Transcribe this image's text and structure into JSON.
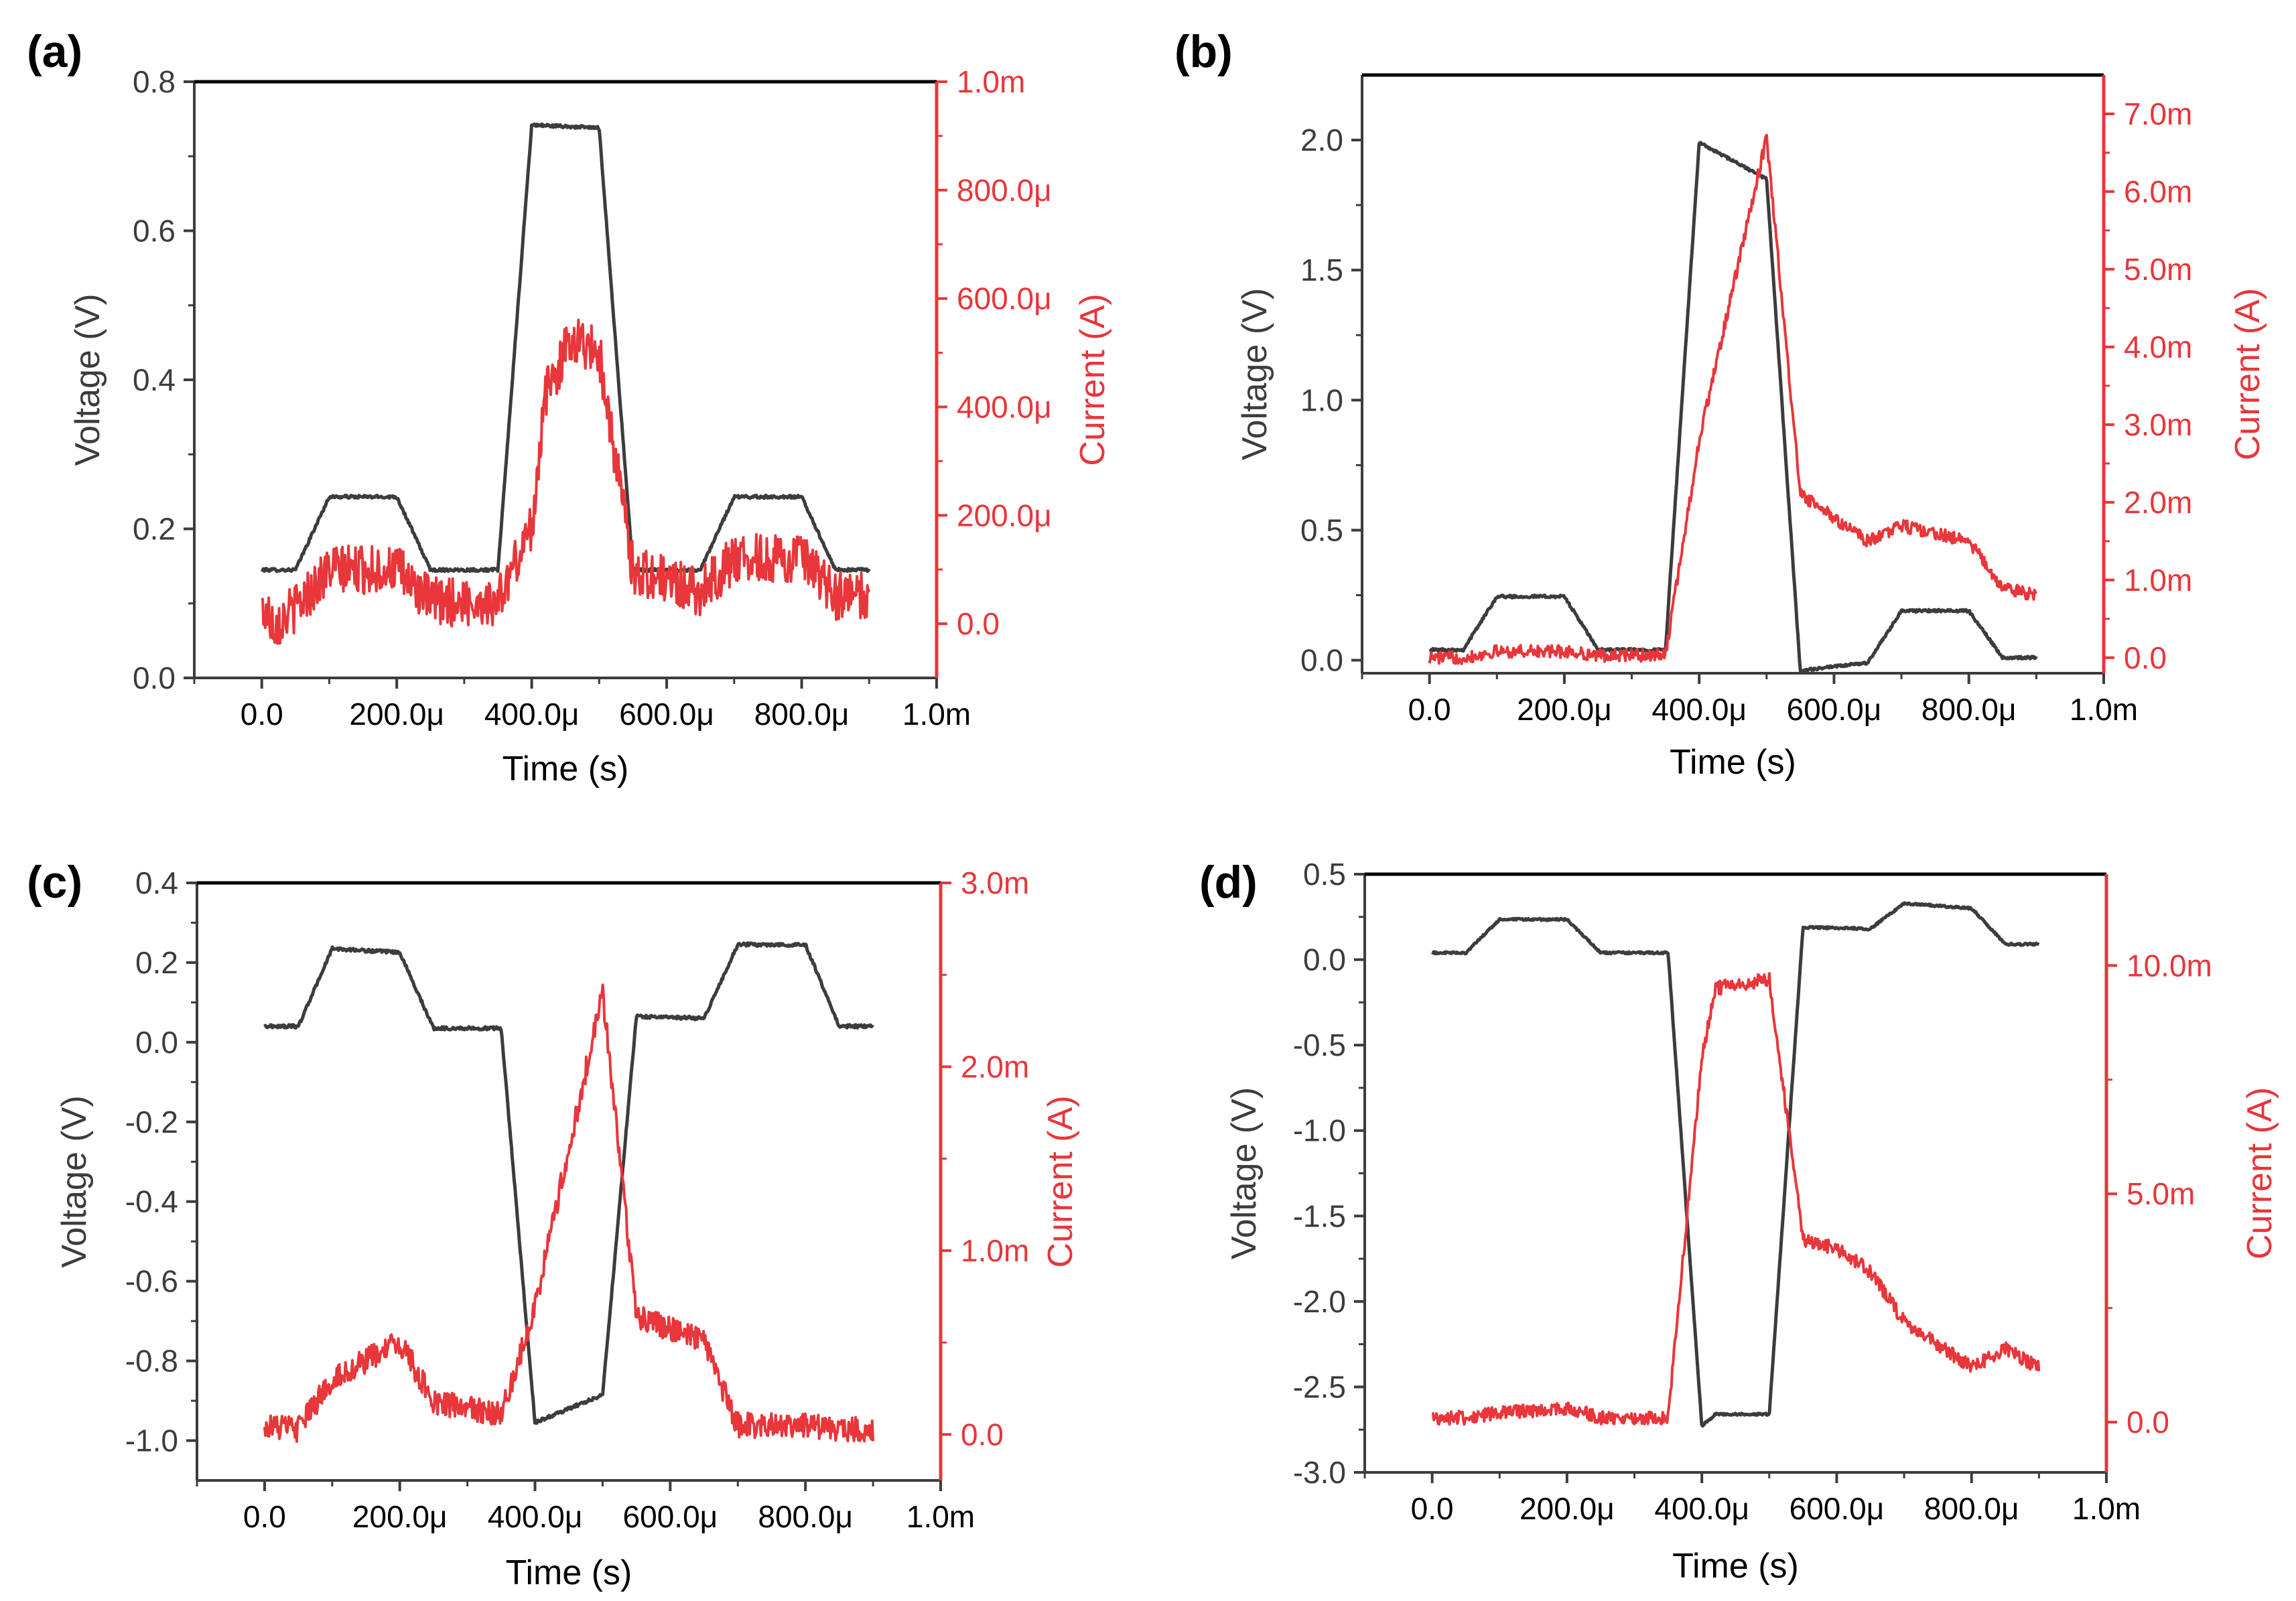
{
  "colors": {
    "voltage": "#3c3c3c",
    "current": "#e8363a",
    "frame": "#000000"
  },
  "chart_data": [
    {
      "type": "line",
      "panel_label": "(a)",
      "xlabel": "Time (s)",
      "ylabel_left": "Voltage (V)",
      "ylabel_right": "Current (A)",
      "xlim": [
        -0.0001,
        0.001
      ],
      "xticks": [
        0,
        0.0002,
        0.0004,
        0.0006,
        0.0008,
        0.001
      ],
      "xtick_labels": [
        "0.0",
        "200.0μ",
        "400.0μ",
        "600.0μ",
        "800.0μ",
        "1.0m"
      ],
      "ylim_left": [
        0,
        0.8
      ],
      "yticks_left": [
        0,
        0.2,
        0.4,
        0.6,
        0.8
      ],
      "ytick_labels_left": [
        "0.0",
        "0.2",
        "0.4",
        "0.6",
        "0.8"
      ],
      "ylim_right": [
        -0.0001,
        0.001
      ],
      "yticks_right": [
        0,
        0.0002,
        0.0004,
        0.0006,
        0.0008,
        0.001
      ],
      "ytick_labels_right": [
        "0.0",
        "200.0μ",
        "400.0μ",
        "600.0μ",
        "800.0μ",
        "1.0m"
      ],
      "series": [
        {
          "name": "Voltage",
          "axis": "left",
          "x": [
            0,
            5e-05,
            0.0001,
            0.0002,
            0.00025,
            0.00035,
            0.0004,
            0.0005,
            0.00055,
            0.00065,
            0.0007,
            0.0008,
            0.00085,
            0.0009
          ],
          "y": [
            0.145,
            0.145,
            0.243,
            0.243,
            0.145,
            0.145,
            0.742,
            0.738,
            0.145,
            0.145,
            0.243,
            0.243,
            0.145,
            0.145
          ],
          "noise": 0.002
        },
        {
          "name": "Current",
          "axis": "right",
          "x": [
            0,
            2e-05,
            5e-05,
            0.0001,
            0.0002,
            0.00025,
            0.00035,
            0.0004,
            0.00042,
            0.00046,
            0.0005,
            0.00055,
            0.00065,
            0.0007,
            0.0008,
            0.00085,
            0.0009
          ],
          "y": [
            3e-05,
            0.0,
            3e-05,
            0.0001,
            0.0001,
            4e-05,
            4e-05,
            0.00018,
            0.00042,
            0.00053,
            0.0005,
            0.0001,
            6e-05,
            0.00012,
            0.00012,
            5e-05,
            5e-05
          ],
          "noise": 4.5e-05
        }
      ]
    },
    {
      "type": "line",
      "panel_label": "(b)",
      "xlabel": "Time (s)",
      "ylabel_left": "Voltage (V)",
      "ylabel_right": "Current (A)",
      "xlim": [
        -0.0001,
        0.001
      ],
      "xticks": [
        0,
        0.0002,
        0.0004,
        0.0006,
        0.0008,
        0.001
      ],
      "xtick_labels": [
        "0.0",
        "200.0μ",
        "400.0μ",
        "600.0μ",
        "800.0μ",
        "1.0m"
      ],
      "ylim_left": [
        -0.05,
        2.25
      ],
      "yticks_left": [
        0,
        0.5,
        1.0,
        1.5,
        2.0
      ],
      "ytick_labels_left": [
        "0.0",
        "0.5",
        "1.0",
        "1.5",
        "2.0"
      ],
      "ylim_right": [
        -0.0002,
        0.0075
      ],
      "yticks_right": [
        0,
        0.001,
        0.002,
        0.003,
        0.004,
        0.005,
        0.006,
        0.007
      ],
      "ytick_labels_right": [
        "0.0",
        "1.0m",
        "2.0m",
        "3.0m",
        "4.0m",
        "5.0m",
        "6.0m",
        "7.0m"
      ],
      "series": [
        {
          "name": "Voltage",
          "axis": "left",
          "x": [
            0,
            5e-05,
            0.0001,
            0.0002,
            0.00025,
            0.00035,
            0.0004,
            0.0005,
            0.00055,
            0.00065,
            0.0007,
            0.0008,
            0.00085,
            0.0009
          ],
          "y": [
            0.04,
            0.04,
            0.245,
            0.245,
            0.04,
            0.04,
            1.99,
            1.85,
            -0.04,
            -0.01,
            0.19,
            0.19,
            0.01,
            0.01
          ],
          "noise": 0.005
        },
        {
          "name": "Current",
          "axis": "right",
          "x": [
            0,
            5e-05,
            0.0001,
            0.0002,
            0.00025,
            0.00035,
            0.0004,
            0.0005,
            0.00055,
            0.0006,
            0.00065,
            0.0007,
            0.0008,
            0.00085,
            0.0009
          ],
          "y": [
            0.0,
            0.0,
            8e-05,
            8e-05,
            3e-05,
            3e-05,
            0.0028,
            0.0067,
            0.0021,
            0.0018,
            0.0015,
            0.0017,
            0.0015,
            0.0009,
            0.0008
          ],
          "noise": 8e-05
        }
      ]
    },
    {
      "type": "line",
      "panel_label": "(c)",
      "xlabel": "Time (s)",
      "ylabel_left": "Voltage (V)",
      "ylabel_right": "Current (A)",
      "xlim": [
        -0.0001,
        0.001
      ],
      "xticks": [
        0,
        0.0002,
        0.0004,
        0.0006,
        0.0008,
        0.001
      ],
      "xtick_labels": [
        "0.0",
        "200.0μ",
        "400.0μ",
        "600.0μ",
        "800.0μ",
        "1.0m"
      ],
      "ylim_left": [
        -1.1,
        0.4
      ],
      "yticks_left": [
        -1.0,
        -0.8,
        -0.6,
        -0.4,
        -0.2,
        0.0,
        0.2,
        0.4
      ],
      "ytick_labels_left": [
        "-1.0",
        "-0.8",
        "-0.6",
        "-0.4",
        "-0.2",
        "0.0",
        "0.2",
        "0.4"
      ],
      "ylim_right": [
        -0.00025,
        0.003
      ],
      "yticks_right": [
        0,
        0.001,
        0.002,
        0.003
      ],
      "ytick_labels_right": [
        "0.0",
        "1.0m",
        "2.0m",
        "3.0m"
      ],
      "series": [
        {
          "name": "Voltage",
          "axis": "left",
          "x": [
            0,
            5e-05,
            0.0001,
            0.0002,
            0.00025,
            0.00035,
            0.0004,
            0.0005,
            0.00055,
            0.00065,
            0.0007,
            0.0008,
            0.00085,
            0.0009
          ],
          "y": [
            0.04,
            0.04,
            0.235,
            0.225,
            0.035,
            0.035,
            -0.955,
            -0.885,
            0.065,
            0.06,
            0.245,
            0.245,
            0.04,
            0.04
          ],
          "noise": 0.004
        },
        {
          "name": "Current",
          "axis": "right",
          "x": [
            0,
            5e-05,
            0.0001,
            0.0002,
            0.00025,
            0.00035,
            0.0004,
            0.0005,
            0.00055,
            0.00065,
            0.0007,
            0.0008,
            0.00085,
            0.0009
          ],
          "y": [
            5e-05,
            3e-05,
            0.0003,
            0.0005,
            0.00018,
            0.0001,
            0.0007,
            0.0024,
            0.00065,
            0.0005,
            5e-05,
            5e-05,
            3e-05,
            3e-05
          ],
          "noise": 7e-05
        }
      ]
    },
    {
      "type": "line",
      "panel_label": "(d)",
      "xlabel": "Time (s)",
      "ylabel_left": "Voltage (V)",
      "ylabel_right": "Current (A)",
      "xlim": [
        -0.0001,
        0.001
      ],
      "xticks": [
        0,
        0.0002,
        0.0004,
        0.0006,
        0.0008,
        0.001
      ],
      "xtick_labels": [
        "0.0",
        "200.0μ",
        "400.0μ",
        "600.0μ",
        "800.0μ",
        "1.0m"
      ],
      "ylim_left": [
        -3.0,
        0.5
      ],
      "yticks_left": [
        -3.0,
        -2.5,
        -2.0,
        -1.5,
        -1.0,
        -0.5,
        0.0,
        0.5
      ],
      "ytick_labels_left": [
        "-3.0",
        "-2.5",
        "-2.0",
        "-1.5",
        "-1.0",
        "-0.5",
        "0.0",
        "0.5"
      ],
      "ylim_right": [
        -0.0011,
        0.012
      ],
      "yticks_right": [
        0,
        0.005,
        0.01
      ],
      "ytick_labels_right": [
        "0.0",
        "5.0m",
        "10.0m"
      ],
      "series": [
        {
          "name": "Voltage",
          "axis": "left",
          "x": [
            0,
            5e-05,
            0.0001,
            0.0002,
            0.00025,
            0.00035,
            0.0004,
            0.00042,
            0.0005,
            0.00055,
            0.00065,
            0.0007,
            0.0008,
            0.00085,
            0.0009
          ],
          "y": [
            0.04,
            0.04,
            0.235,
            0.235,
            0.04,
            0.04,
            -2.73,
            -2.66,
            -2.66,
            0.19,
            0.18,
            0.33,
            0.3,
            0.09,
            0.09
          ],
          "noise": 0.006
        },
        {
          "name": "Current",
          "axis": "right",
          "x": [
            0,
            5e-05,
            0.0001,
            0.0002,
            0.00025,
            0.00035,
            0.0004,
            0.00042,
            0.0005,
            0.00055,
            0.0006,
            0.00065,
            0.0007,
            0.0008,
            0.00085,
            0.0009
          ],
          "y": [
            0.0001,
            0.0001,
            0.0002,
            0.0003,
            0.0001,
            0.0001,
            0.008,
            0.0095,
            0.0097,
            0.004,
            0.0038,
            0.0033,
            0.0022,
            0.0012,
            0.0016,
            0.0012
          ],
          "noise": 0.00015
        }
      ]
    }
  ]
}
